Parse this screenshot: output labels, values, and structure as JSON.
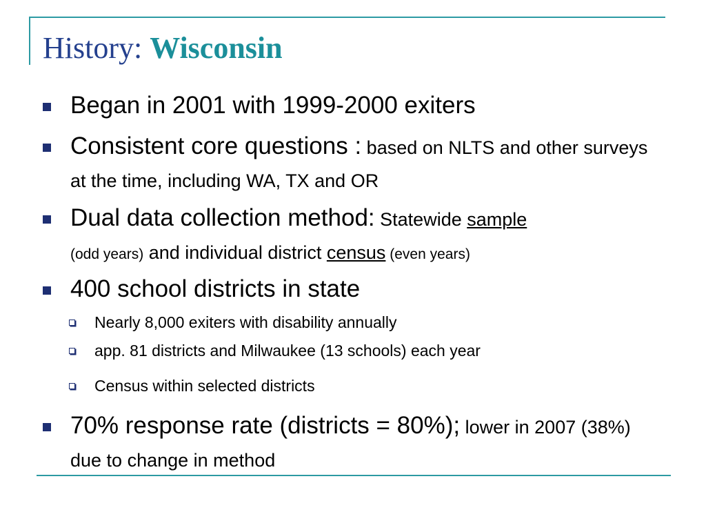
{
  "slide": {
    "title_prefix": "History:",
    "title_accent": "Wisconsin",
    "bullets": [
      {
        "text": "Began in 2001 with 1999-2000 exiters"
      },
      {
        "lead": "Consistent core questions :",
        "detail": " based on NLTS and other surveys at the time, including WA, TX and OR"
      },
      {
        "lead": "Dual data collection method:",
        "part1": " Statewide ",
        "part1_underlined": "sample",
        "part2": "(odd years)",
        "part3": " and individual district ",
        "part3_underlined": "census",
        "part4": " (even years)"
      },
      {
        "text": "400 school districts in state",
        "sub_bullets": [
          "Nearly 8,000 exiters with disability annually",
          "app. 81 districts and Milwaukee (13 schools) each year",
          "Census within selected districts"
        ]
      },
      {
        "lead": "70% response rate (districts = 80%);",
        "detail": " lower in 2007 (38%) due to change in method"
      }
    ]
  },
  "colors": {
    "title": "#24408e",
    "title_accent": "#1b8f9a",
    "rule": "#2c9aa3",
    "bullet_marker": "#1e2f73"
  },
  "icons": {
    "level1_marker": "filled-square-bullet-icon",
    "level2_marker": "hollow-square-bullet-icon"
  }
}
